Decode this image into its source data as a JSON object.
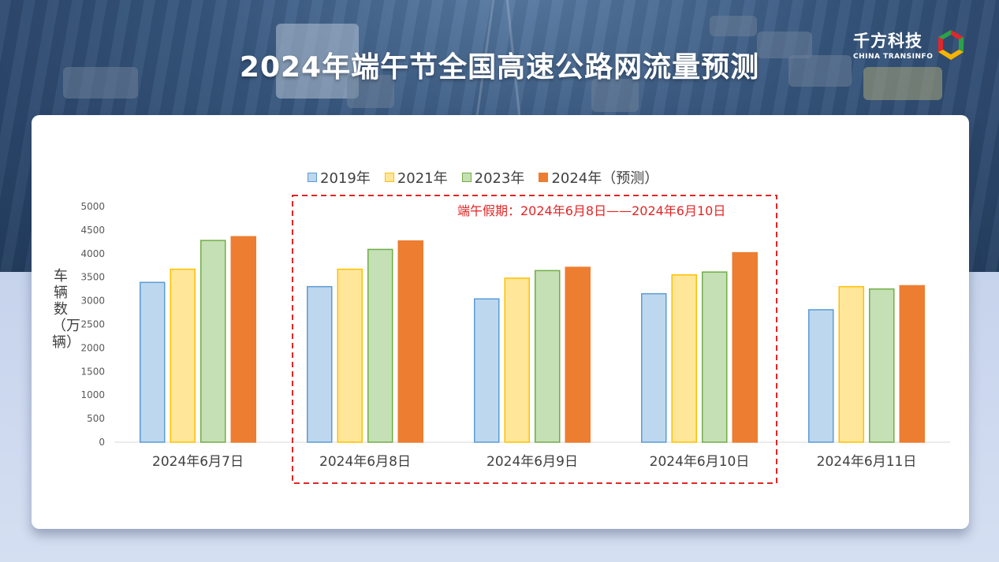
{
  "header": {
    "title": "2024年端午节全国高速公路网流量预测",
    "logo_cn": "千方科技",
    "logo_en": "CHINA TRANSINFO"
  },
  "colors": {
    "2019": {
      "fill": "#bdd7ee",
      "stroke": "#5b9bd5"
    },
    "2021": {
      "fill": "#ffe699",
      "stroke": "#ffc000"
    },
    "2023": {
      "fill": "#c5e0b4",
      "stroke": "#70ad47"
    },
    "2024": {
      "fill": "#ed7d31",
      "stroke": "#ed7d31"
    },
    "annotation": "#e42525"
  },
  "chart_data": {
    "type": "bar",
    "title": "",
    "xlabel": "",
    "ylabel": "车辆数（万辆）",
    "ylim": [
      0,
      5000
    ],
    "yticks": [
      "0",
      "500",
      "1000",
      "1500",
      "2000",
      "2500",
      "3000",
      "3500",
      "4000",
      "4500",
      "5000"
    ],
    "categories": [
      "2024年6月7日",
      "2024年6月8日",
      "2024年6月9日",
      "2024年6月10日",
      "2024年6月11日"
    ],
    "series": [
      {
        "name": "2019年",
        "values": [
          3390,
          3300,
          3040,
          3150,
          2810
        ]
      },
      {
        "name": "2021年",
        "values": [
          3670,
          3670,
          3480,
          3550,
          3300
        ]
      },
      {
        "name": "2023年",
        "values": [
          4280,
          4090,
          3640,
          3610,
          3250
        ]
      },
      {
        "name": "2024年（预测）",
        "values": [
          4360,
          4270,
          3710,
          4020,
          3320
        ]
      }
    ],
    "legend_position": "top",
    "grid": false,
    "annotation": {
      "text": "端午假期：2024年6月8日——2024年6月10日",
      "highlight_categories": [
        "2024年6月8日",
        "2024年6月9日",
        "2024年6月10日"
      ]
    }
  }
}
